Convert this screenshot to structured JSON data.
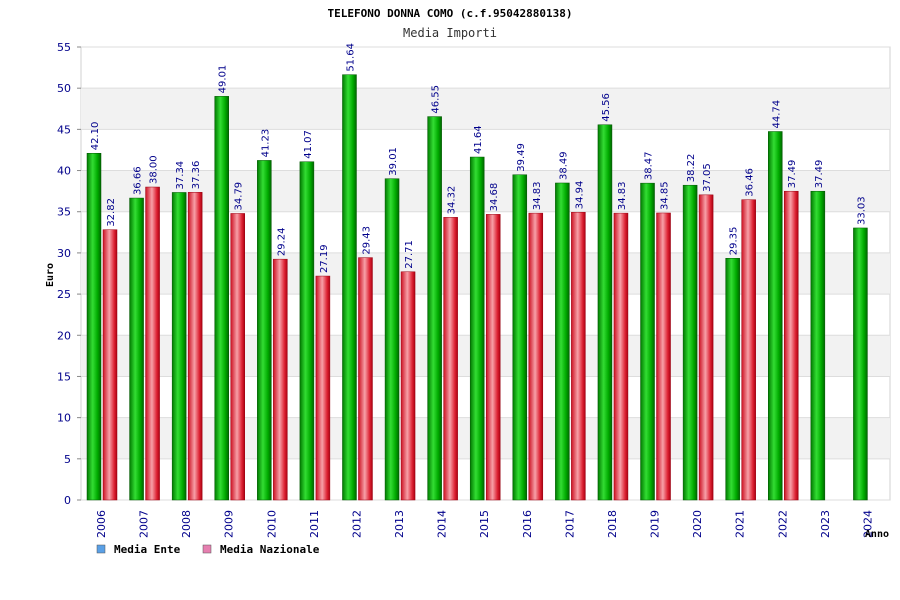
{
  "chart_data": {
    "type": "bar",
    "title": "TELEFONO DONNA COMO (c.f.95042880138)",
    "subtitle": "Media Importi",
    "xlabel": "Anno",
    "ylabel": "Euro",
    "ylim": [
      0,
      55
    ],
    "yticks": [
      "0",
      "5",
      "10",
      "15",
      "20",
      "25",
      "30",
      "35",
      "40",
      "45",
      "50",
      "55"
    ],
    "categories": [
      "2006",
      "2007",
      "2008",
      "2009",
      "2010",
      "2011",
      "2012",
      "2013",
      "2014",
      "2015",
      "2016",
      "2017",
      "2018",
      "2019",
      "2020",
      "2021",
      "2022",
      "2023",
      "2024"
    ],
    "series": [
      {
        "name": "Media Ente",
        "color": "#22bb22",
        "values": [
          42.1,
          36.66,
          37.34,
          49.01,
          41.23,
          41.07,
          51.64,
          39.01,
          46.55,
          41.64,
          39.49,
          38.49,
          45.56,
          38.47,
          38.22,
          29.35,
          44.74,
          37.49,
          33.03
        ],
        "labels": [
          "42.10",
          "36.66",
          "37.34",
          "49.01",
          "41.23",
          "41.07",
          "51.64",
          "39.01",
          "46.55",
          "41.64",
          "39.49",
          "38.49",
          "45.56",
          "38.47",
          "38.22",
          "29.35",
          "44.74",
          "37.49",
          "33.03"
        ]
      },
      {
        "name": "Media Nazionale",
        "color": "#ee3344",
        "values": [
          32.82,
          38.0,
          37.36,
          34.79,
          29.24,
          27.19,
          29.43,
          27.71,
          34.32,
          34.68,
          34.83,
          34.94,
          34.83,
          34.85,
          37.05,
          36.46,
          37.49,
          null,
          null
        ],
        "labels": [
          "32.82",
          "38.00",
          "37.36",
          "34.79",
          "29.24",
          "27.19",
          "29.43",
          "27.71",
          "34.32",
          "34.68",
          "34.83",
          "34.94",
          "34.83",
          "34.85",
          "37.05",
          "36.46",
          "37.49",
          null,
          null
        ]
      }
    ],
    "legend": [
      {
        "label": "Media Ente",
        "color": "#5aa0e6"
      },
      {
        "label": "Media Nazionale",
        "color": "#e67fb0"
      }
    ],
    "grid": true,
    "legend_position": "bottom-left"
  }
}
